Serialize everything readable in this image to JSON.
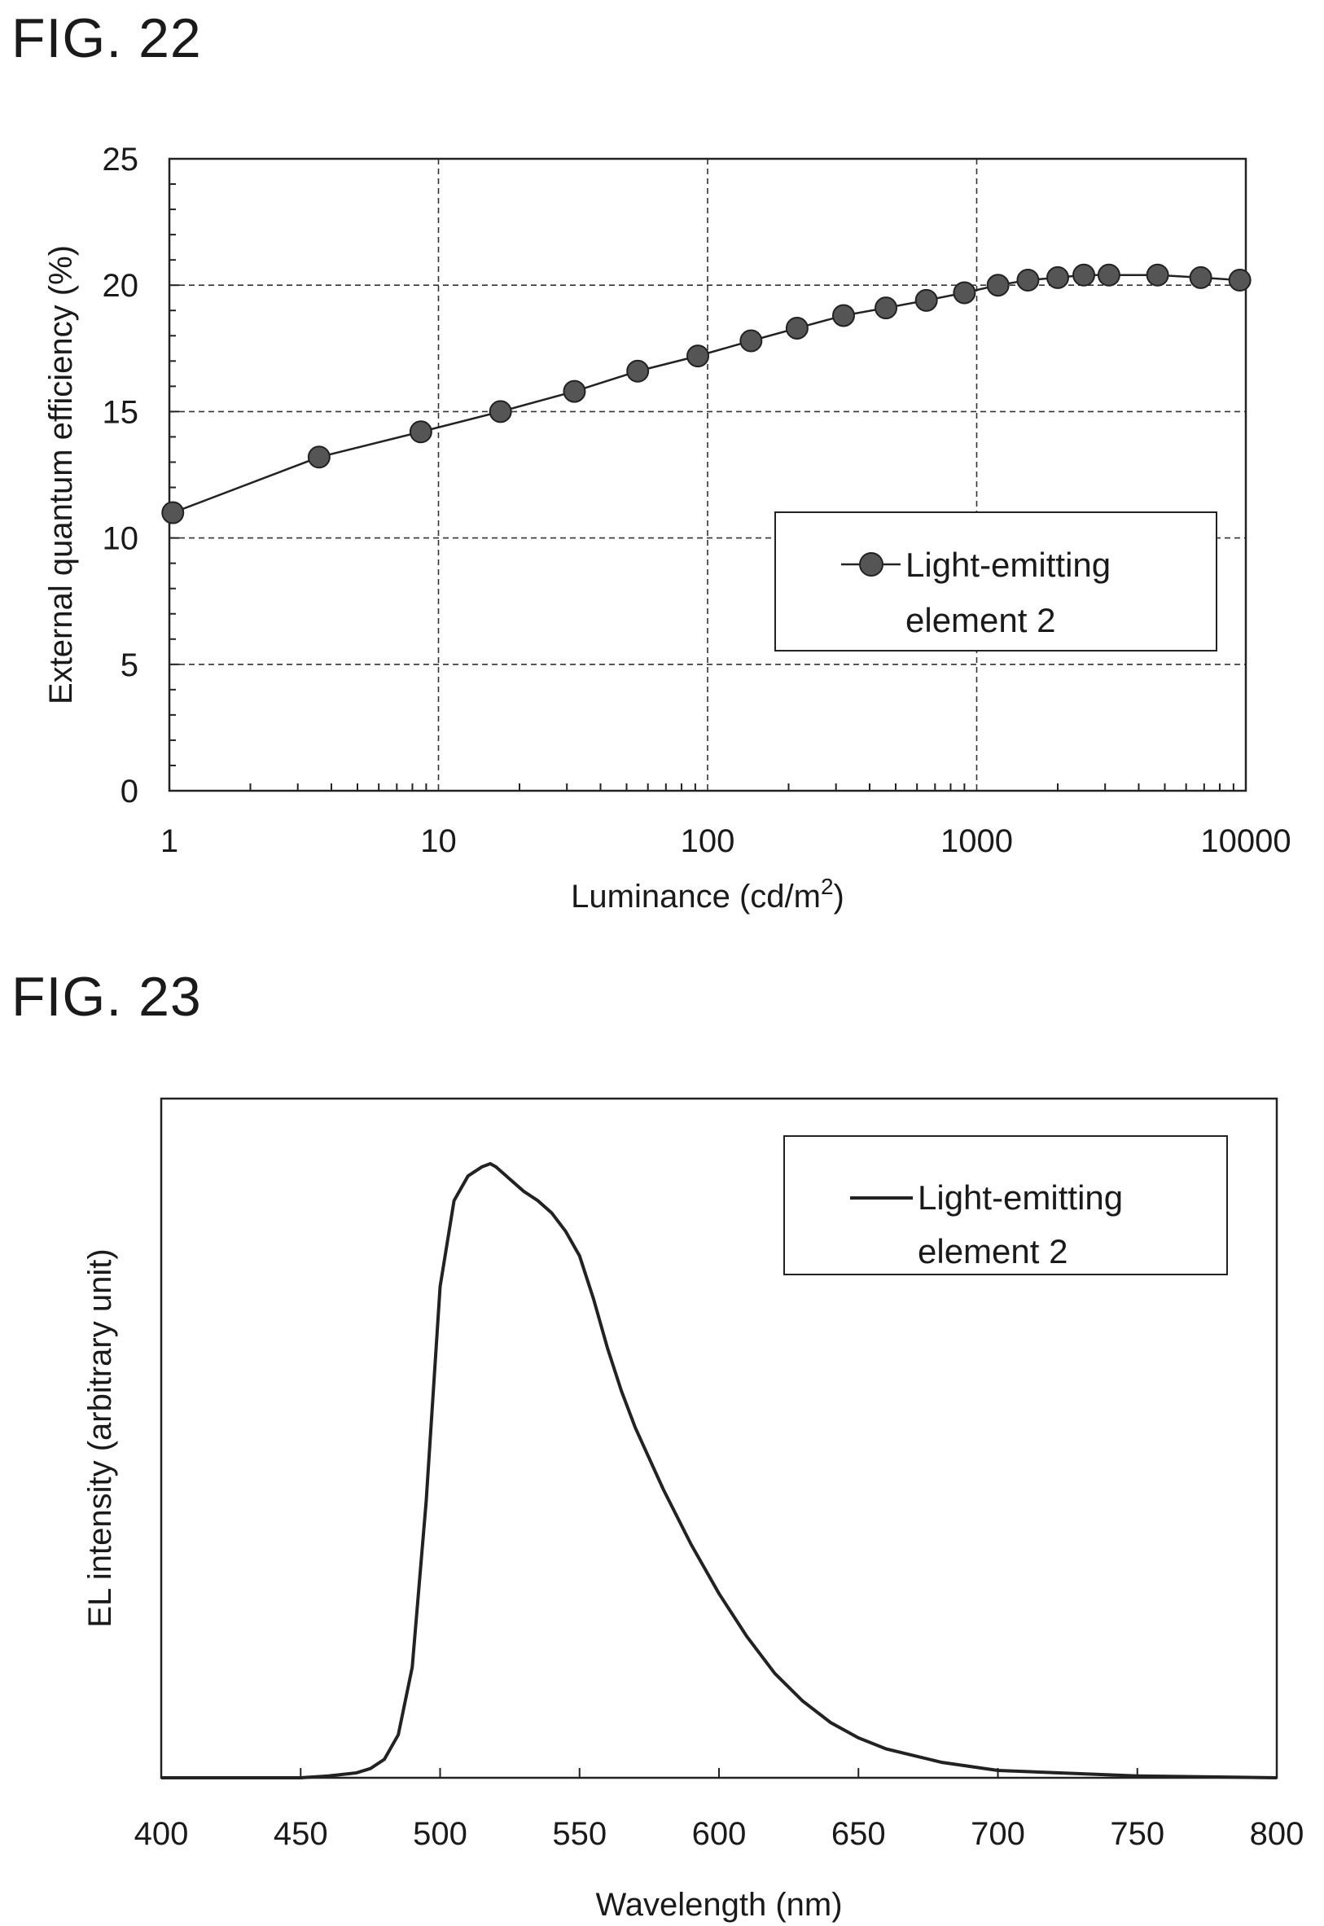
{
  "figures": [
    {
      "label": "FIG. 22"
    },
    {
      "label": "FIG. 23"
    }
  ],
  "chart_data": [
    {
      "type": "line",
      "title": "",
      "xlabel_main": "Luminance (cd/m",
      "xlabel_sup": "2",
      "xlabel_tail": ")",
      "ylabel": "External quantum efficiency (%)",
      "xscale": "log",
      "xlim": [
        1,
        10000
      ],
      "ylim": [
        0,
        25
      ],
      "xticks": [
        "1",
        "10",
        "100",
        "1000",
        "10000"
      ],
      "yticks": [
        "0",
        "5",
        "10",
        "15",
        "20",
        "25"
      ],
      "grid": "dashed",
      "legend_position": "right-middle",
      "marker": "circle",
      "series": [
        {
          "name_line1": "Light-emitting",
          "name_line2": "element 2",
          "x": [
            1.03,
            3.6,
            8.6,
            17,
            32,
            55,
            92,
            145,
            215,
            320,
            460,
            650,
            900,
            1200,
            1550,
            2000,
            2500,
            3100,
            4700,
            6800,
            9500
          ],
          "y": [
            11.0,
            13.2,
            14.2,
            15.0,
            15.8,
            16.6,
            17.2,
            17.8,
            18.3,
            18.8,
            19.1,
            19.4,
            19.7,
            20.0,
            20.2,
            20.3,
            20.4,
            20.4,
            20.4,
            20.3,
            20.2
          ]
        }
      ]
    },
    {
      "type": "line",
      "title": "",
      "xlabel": "Wavelength (nm)",
      "ylabel": "EL intensity (arbitrary unit)",
      "xlim": [
        400,
        800
      ],
      "ylim": [
        0,
        1.0
      ],
      "xticks": [
        "400",
        "450",
        "500",
        "550",
        "600",
        "650",
        "700",
        "750",
        "800"
      ],
      "yticks": [],
      "grid": "none",
      "legend_position": "top-right",
      "series": [
        {
          "name_line1": "Light-emitting",
          "name_line2": "element 2",
          "x": [
            400,
            450,
            460,
            470,
            475,
            480,
            485,
            490,
            495,
            500,
            505,
            510,
            515,
            518,
            520,
            525,
            530,
            535,
            540,
            545,
            550,
            555,
            560,
            565,
            570,
            580,
            590,
            600,
            610,
            620,
            630,
            640,
            650,
            660,
            680,
            700,
            750,
            800
          ],
          "y": [
            0.0,
            0.0,
            0.003,
            0.008,
            0.015,
            0.03,
            0.07,
            0.18,
            0.45,
            0.8,
            0.94,
            0.98,
            0.995,
            1.0,
            0.995,
            0.975,
            0.955,
            0.94,
            0.92,
            0.89,
            0.85,
            0.78,
            0.7,
            0.63,
            0.57,
            0.47,
            0.38,
            0.3,
            0.23,
            0.17,
            0.125,
            0.09,
            0.065,
            0.047,
            0.025,
            0.012,
            0.003,
            0.0
          ]
        }
      ]
    }
  ]
}
